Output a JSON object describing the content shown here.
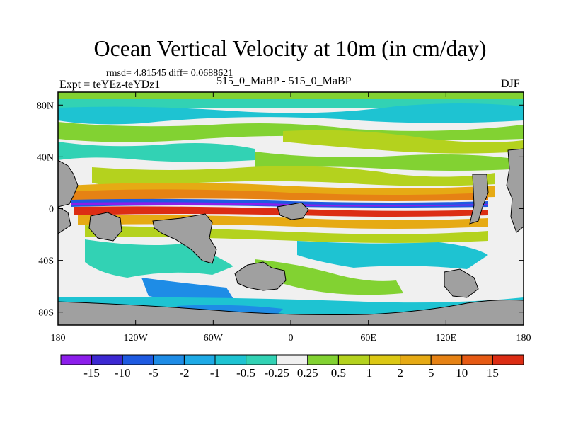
{
  "title": "Ocean Vertical Velocity at 10m (in cm/day)",
  "stats": "rmsd= 4.81545 diff= 0.0688621",
  "expt": "Expt = teYEz-teYDz1",
  "case": "515_0_MaBP - 515_0_MaBP",
  "season": "DJF",
  "x_ticks": [
    {
      "label": "180",
      "lon": -180
    },
    {
      "label": "120W",
      "lon": -120
    },
    {
      "label": "60W",
      "lon": -60
    },
    {
      "label": "0",
      "lon": 0
    },
    {
      "label": "60E",
      "lon": 60
    },
    {
      "label": "120E",
      "lon": 120
    },
    {
      "label": "180",
      "lon": 180
    }
  ],
  "y_ticks": [
    {
      "label": "80N",
      "lat": 80
    },
    {
      "label": "40N",
      "lat": 40
    },
    {
      "label": "0",
      "lat": 0
    },
    {
      "label": "40S",
      "lat": -40
    },
    {
      "label": "80S",
      "lat": -80
    }
  ],
  "colorbar": {
    "colors": [
      "#8c1eeb",
      "#3c28d2",
      "#1e5ae1",
      "#1e8ce6",
      "#1eaae6",
      "#1ec3d2",
      "#32d2b4",
      "#f0f0f0",
      "#82d232",
      "#b4d21e",
      "#dcc814",
      "#e6aa14",
      "#e68214",
      "#e65a14",
      "#dc2d14"
    ],
    "labels": [
      "-15",
      "-10",
      "-5",
      "-2",
      "-1",
      "-0.5",
      "-0.25",
      "0.25",
      "0.5",
      "1",
      "2",
      "5",
      "10",
      "15"
    ]
  },
  "colors": {
    "land": "#a0a0a0",
    "ocean_neutral": "#f0f0f0",
    "upwelling_strong": "#dc2d14",
    "downwelling_strong": "#3c28d2",
    "green": "#82d232",
    "yellow_green": "#b4d21e",
    "cyan": "#1ec3d2",
    "teal": "#32d2b4"
  }
}
